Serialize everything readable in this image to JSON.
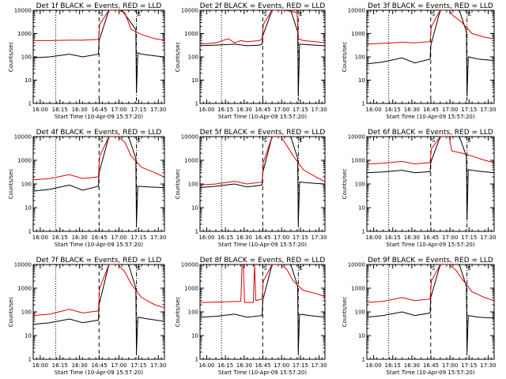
{
  "colors": {
    "events": "#000000",
    "lld": "#e00000",
    "background": "#ffffff"
  },
  "chart_data": [
    {
      "type": "line",
      "title": "Det 1f  BLACK = Events, RED = LLD",
      "xlabel": "Start Time (10-Apr-09 15:57:20)",
      "ylabel": "Counts/sec",
      "yscale": "log",
      "ylim": [
        1,
        10000
      ],
      "xlim": [
        -2.67,
        97.33
      ],
      "x_tick_labels": [
        "16:00",
        "16:15",
        "16:30",
        "16:45",
        "17:00",
        "17:15",
        "17:30"
      ],
      "y_tick_labels": [
        "1",
        "10",
        "100",
        "1000",
        "10000"
      ],
      "markers": [
        "S",
        "E"
      ],
      "series": [
        {
          "name": "Events",
          "color": "#000000",
          "x": [
            -2.67,
            10,
            25,
            35,
            47,
            47.5,
            55,
            65,
            75.5,
            76,
            77,
            80,
            90,
            97
          ],
          "y": [
            90,
            100,
            130,
            100,
            130,
            500,
            10000,
            10000,
            1500,
            3,
            150,
            130,
            110,
            100
          ]
        },
        {
          "name": "LLD",
          "color": "#e00000",
          "x": [
            -2.67,
            10,
            25,
            35,
            47,
            48,
            55,
            62,
            67,
            72,
            80,
            90,
            97
          ],
          "y": [
            500,
            500,
            520,
            520,
            560,
            2500,
            10000,
            10000,
            8000,
            1500,
            900,
            600,
            520
          ]
        }
      ]
    },
    {
      "type": "line",
      "title": "Det 2f  BLACK = Events, RED = LLD",
      "xlabel": "Start Time (10-Apr-09 15:57:20)",
      "ylabel": "Counts/sec",
      "yscale": "log",
      "ylim": [
        1,
        10000
      ],
      "xlim": [
        -2.67,
        97.33
      ],
      "x_tick_labels": [
        "16:00",
        "16:15",
        "16:30",
        "16:45",
        "17:00",
        "17:15",
        "17:30"
      ],
      "y_tick_labels": [
        "1",
        "10",
        "100",
        "1000",
        "10000"
      ],
      "markers": [
        "S",
        "E"
      ],
      "series": [
        {
          "name": "Events",
          "color": "#000000",
          "x": [
            -2.67,
            10,
            25,
            35,
            45,
            47,
            47.5,
            55,
            70,
            75.5,
            76,
            77,
            85,
            97
          ],
          "y": [
            300,
            320,
            350,
            300,
            320,
            350,
            800,
            10000,
            10000,
            1200,
            2,
            350,
            330,
            300
          ]
        },
        {
          "name": "LLD",
          "color": "#e00000",
          "x": [
            -2.67,
            10,
            20,
            25,
            30,
            35,
            45,
            47,
            48,
            55,
            65,
            75,
            76,
            80,
            90,
            97
          ],
          "y": [
            350,
            400,
            600,
            400,
            500,
            450,
            500,
            600,
            2500,
            10000,
            10000,
            8000,
            600,
            500,
            450,
            400
          ]
        }
      ]
    },
    {
      "type": "line",
      "title": "Det 3f  BLACK = Events, RED = LLD",
      "xlabel": "Start Time (10-Apr-09 15:57:20)",
      "ylabel": "Counts/sec",
      "yscale": "log",
      "ylim": [
        1,
        10000
      ],
      "xlim": [
        -2.67,
        97.33
      ],
      "x_tick_labels": [
        "16:00",
        "16:15",
        "16:30",
        "16:45",
        "17:00",
        "17:15",
        "17:30"
      ],
      "y_tick_labels": [
        "1",
        "10",
        "100",
        "1000",
        "10000"
      ],
      "markers": [
        "S",
        "E"
      ],
      "series": [
        {
          "name": "Events",
          "color": "#000000",
          "x": [
            -2.67,
            10,
            25,
            35,
            47,
            47.5,
            55,
            70,
            75.5,
            76,
            77,
            85,
            97
          ],
          "y": [
            50,
            60,
            90,
            55,
            80,
            300,
            10000,
            10000,
            1200,
            2,
            100,
            80,
            70
          ]
        },
        {
          "name": "LLD",
          "color": "#e00000",
          "x": [
            -2.67,
            10,
            25,
            35,
            47,
            48,
            55,
            62,
            65,
            72,
            80,
            90,
            97
          ],
          "y": [
            350,
            380,
            420,
            400,
            450,
            2000,
            10000,
            10000,
            6000,
            3000,
            1000,
            700,
            600
          ]
        }
      ]
    },
    {
      "type": "line",
      "title": "Det 4f  BLACK = Events, RED = LLD",
      "xlabel": "Start Time (10-Apr-09 15:57:20)",
      "ylabel": "Counts/sec",
      "yscale": "log",
      "ylim": [
        1,
        10000
      ],
      "xlim": [
        -2.67,
        97.33
      ],
      "x_tick_labels": [
        "16:00",
        "16:15",
        "16:30",
        "16:45",
        "17:00",
        "17:15",
        "17:30"
      ],
      "y_tick_labels": [
        "1",
        "10",
        "100",
        "1000",
        "10000"
      ],
      "markers": [
        "S",
        "E"
      ],
      "series": [
        {
          "name": "Events",
          "color": "#000000",
          "x": [
            -2.67,
            10,
            25,
            35,
            47,
            47.5,
            55,
            70,
            75.5,
            76,
            77,
            85,
            97
          ],
          "y": [
            50,
            60,
            90,
            55,
            80,
            300,
            10000,
            10000,
            1200,
            2,
            80,
            75,
            70
          ]
        },
        {
          "name": "LLD",
          "color": "#e00000",
          "x": [
            -2.67,
            10,
            25,
            35,
            47,
            48,
            55,
            62,
            67,
            72,
            80,
            90,
            97
          ],
          "y": [
            150,
            170,
            250,
            170,
            200,
            1500,
            10000,
            10000,
            6000,
            1500,
            500,
            300,
            200
          ]
        }
      ]
    },
    {
      "type": "line",
      "title": "Det 5f  BLACK = Events, RED = LLD",
      "xlabel": "Start Time (10-Apr-09 15:57:20)",
      "ylabel": "Counts/sec",
      "yscale": "log",
      "ylim": [
        1,
        10000
      ],
      "xlim": [
        -2.67,
        97.33
      ],
      "x_tick_labels": [
        "16:00",
        "16:15",
        "16:30",
        "16:45",
        "17:00",
        "17:15",
        "17:30"
      ],
      "y_tick_labels": [
        "1",
        "10",
        "100",
        "1000",
        "10000"
      ],
      "markers": [
        "S",
        "E"
      ],
      "series": [
        {
          "name": "Events",
          "color": "#000000",
          "x": [
            -2.67,
            10,
            25,
            35,
            47,
            47.5,
            55,
            70,
            75.5,
            76,
            77,
            85,
            97
          ],
          "y": [
            70,
            80,
            100,
            75,
            90,
            300,
            10000,
            10000,
            1200,
            2,
            120,
            110,
            100
          ]
        },
        {
          "name": "LLD",
          "color": "#e00000",
          "x": [
            -2.67,
            10,
            25,
            35,
            47,
            48,
            55,
            62,
            67,
            72,
            80,
            90,
            97
          ],
          "y": [
            90,
            100,
            130,
            100,
            120,
            800,
            10000,
            10000,
            4000,
            1500,
            400,
            200,
            130
          ]
        }
      ]
    },
    {
      "type": "line",
      "title": "Det 6f  BLACK = Events, RED = LLD",
      "xlabel": "Start Time (10-Apr-09 15:57:20)",
      "ylabel": "Counts/sec",
      "yscale": "log",
      "ylim": [
        1,
        10000
      ],
      "xlim": [
        -2.67,
        97.33
      ],
      "x_tick_labels": [
        "16:00",
        "16:15",
        "16:30",
        "16:45",
        "17:00",
        "17:15",
        "17:30"
      ],
      "y_tick_labels": [
        "1",
        "10",
        "100",
        "1000",
        "10000"
      ],
      "markers": [
        "S",
        "E"
      ],
      "series": [
        {
          "name": "Events",
          "color": "#000000",
          "x": [
            -2.67,
            10,
            25,
            35,
            47,
            47.5,
            55,
            70,
            75.5,
            76,
            77,
            85,
            97
          ],
          "y": [
            300,
            320,
            380,
            300,
            330,
            800,
            10000,
            10000,
            1500,
            3,
            400,
            350,
            300
          ]
        },
        {
          "name": "LLD",
          "color": "#e00000",
          "x": [
            -2.67,
            10,
            25,
            35,
            47,
            48,
            55,
            62,
            63,
            64,
            72,
            80,
            90,
            97
          ],
          "y": [
            700,
            750,
            900,
            700,
            800,
            3000,
            10000,
            10000,
            5000,
            2500,
            2000,
            1500,
            1000,
            800
          ]
        }
      ]
    },
    {
      "type": "line",
      "title": "Det 7f  BLACK = Events, RED = LLD",
      "xlabel": "Start Time (10-Apr-09 15:57:20)",
      "ylabel": "Counts/sec",
      "yscale": "log",
      "ylim": [
        1,
        10000
      ],
      "xlim": [
        -2.67,
        97.33
      ],
      "x_tick_labels": [
        "16:00",
        "16:15",
        "16:30",
        "16:45",
        "17:00",
        "17:15",
        "17:30"
      ],
      "y_tick_labels": [
        "1",
        "10",
        "100",
        "1000",
        "10000"
      ],
      "markers": [
        "S",
        "E"
      ],
      "series": [
        {
          "name": "Events",
          "color": "#000000",
          "x": [
            -2.67,
            10,
            25,
            35,
            47,
            47.5,
            55,
            70,
            75.5,
            76,
            77,
            85,
            97
          ],
          "y": [
            30,
            35,
            50,
            35,
            45,
            200,
            10000,
            10000,
            1000,
            2,
            60,
            50,
            40
          ]
        },
        {
          "name": "LLD",
          "color": "#e00000",
          "x": [
            -2.67,
            10,
            25,
            35,
            47,
            48,
            55,
            62,
            67,
            72,
            80,
            90,
            97
          ],
          "y": [
            70,
            80,
            130,
            90,
            110,
            1000,
            10000,
            10000,
            5000,
            1500,
            400,
            200,
            150
          ]
        }
      ]
    },
    {
      "type": "line",
      "title": "Det 8f  BLACK = Events, RED = LLD",
      "xlabel": "Start Time (10-Apr-09 15:57:20)",
      "ylabel": "Counts/sec",
      "yscale": "log",
      "ylim": [
        1,
        10000
      ],
      "xlim": [
        -2.67,
        97.33
      ],
      "x_tick_labels": [
        "16:00",
        "16:15",
        "16:30",
        "16:45",
        "17:00",
        "17:15",
        "17:30"
      ],
      "y_tick_labels": [
        "1",
        "10",
        "100",
        "1000",
        "10000"
      ],
      "markers": [
        "S",
        "E"
      ],
      "series": [
        {
          "name": "Events",
          "color": "#000000",
          "x": [
            -2.67,
            10,
            25,
            35,
            47,
            47.5,
            55,
            70,
            75.5,
            76,
            77,
            85,
            97
          ],
          "y": [
            60,
            65,
            80,
            60,
            70,
            300,
            10000,
            10000,
            1200,
            2,
            80,
            70,
            60
          ]
        },
        {
          "name": "LLD",
          "color": "#e00000",
          "x": [
            -2.67,
            10,
            30,
            31,
            32,
            33,
            40,
            41,
            42,
            47,
            48,
            55,
            62,
            67,
            72,
            80,
            90,
            97
          ],
          "y": [
            250,
            260,
            280,
            10000,
            10000,
            250,
            250,
            10000,
            300,
            350,
            2000,
            10000,
            10000,
            6000,
            2000,
            800,
            600,
            450
          ]
        }
      ]
    },
    {
      "type": "line",
      "title": "Det 9f  BLACK = Events, RED = LLD",
      "xlabel": "Start Time (10-Apr-09 15:57:20)",
      "ylabel": "Counts/sec",
      "yscale": "log",
      "ylim": [
        1,
        10000
      ],
      "xlim": [
        -2.67,
        97.33
      ],
      "x_tick_labels": [
        "16:00",
        "16:15",
        "16:30",
        "16:45",
        "17:00",
        "17:15",
        "17:30"
      ],
      "y_tick_labels": [
        "1",
        "10",
        "100",
        "1000",
        "10000"
      ],
      "markers": [
        "S",
        "E"
      ],
      "series": [
        {
          "name": "Events",
          "color": "#000000",
          "x": [
            -2.67,
            10,
            25,
            35,
            47,
            47.5,
            55,
            70,
            75.5,
            76,
            77,
            85,
            97
          ],
          "y": [
            60,
            70,
            100,
            70,
            90,
            400,
            10000,
            10000,
            1200,
            2,
            70,
            60,
            55
          ]
        },
        {
          "name": "LLD",
          "color": "#e00000",
          "x": [
            -2.67,
            10,
            25,
            35,
            47,
            48,
            55,
            62,
            67,
            72,
            80,
            90,
            97
          ],
          "y": [
            250,
            280,
            400,
            300,
            350,
            2000,
            10000,
            10000,
            6000,
            2500,
            700,
            400,
            300
          ]
        }
      ]
    }
  ]
}
